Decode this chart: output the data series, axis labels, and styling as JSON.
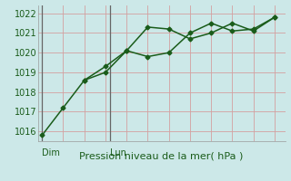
{
  "line1_x": [
    0,
    1,
    2,
    3,
    4,
    5,
    6,
    7,
    8,
    9,
    10,
    11
  ],
  "line1_y": [
    1015.8,
    1017.2,
    1018.6,
    1019.0,
    1020.1,
    1021.3,
    1021.2,
    1020.7,
    1021.0,
    1021.5,
    1021.1,
    1021.8
  ],
  "line2_x": [
    2,
    3,
    4,
    5,
    6,
    7,
    8,
    9,
    10,
    11
  ],
  "line2_y": [
    1018.6,
    1019.3,
    1020.1,
    1019.8,
    1020.0,
    1021.0,
    1021.5,
    1021.1,
    1021.2,
    1021.8
  ],
  "line_color": "#1a5c1a",
  "bg_color": "#cce8e8",
  "grid_color_h": "#d4a0a0",
  "grid_color_v": "#d4a0a0",
  "vline_color": "#666666",
  "vline_x": [
    0,
    3.2
  ],
  "ylim_min": 1015.5,
  "ylim_max": 1022.4,
  "xlim_min": -0.2,
  "xlim_max": 11.5,
  "yticks": [
    1016,
    1017,
    1018,
    1019,
    1020,
    1021,
    1022
  ],
  "xlabel": "Pression niveau de la mer( hPa )",
  "xlabel_fontsize": 8,
  "dim_x": 0,
  "lun_x": 3.2,
  "xtick_label_fontsize": 7,
  "ytick_label_fontsize": 7,
  "marker": "D",
  "markersize": 2.5,
  "linewidth": 1.1,
  "num_vgrid": 12
}
